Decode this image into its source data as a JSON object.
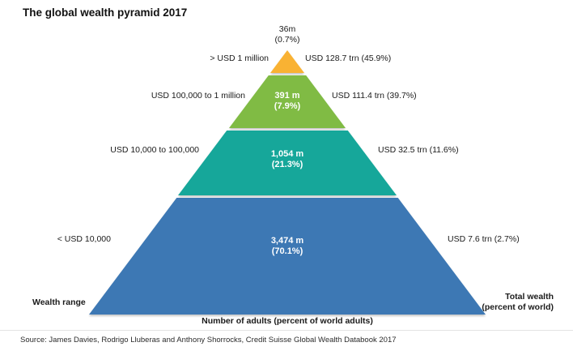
{
  "title": "The global wealth pyramid 2017",
  "footer": {
    "source": "Source: James Davies, Rodrigo Lluberas and Anthony Shorrocks, Credit Suisse Global Wealth Databook 2017"
  },
  "axes": {
    "wealth_range_label": "Wealth range",
    "adults_axis_label": "Number of adults (percent of world adults)",
    "total_wealth_label_line1": "Total wealth",
    "total_wealth_label_line2": "(percent of world)"
  },
  "chart_data": {
    "type": "pyramid",
    "title": "The global wealth pyramid 2017",
    "legend_position": "none",
    "segments": [
      {
        "level": "top",
        "wealth_range": "> USD 1 million",
        "adults_label": "36m",
        "adults_pct_label": "(0.7%)",
        "adults_m": 36,
        "adults_pct": 0.7,
        "total_wealth_label": "USD 128.7 trn (45.9%)",
        "total_wealth_trn_usd": 128.7,
        "total_wealth_pct": 45.9,
        "color": "#F9B233"
      },
      {
        "level": "upper-middle",
        "wealth_range": "USD 100,000 to 1 million",
        "adults_label": "391 m",
        "adults_pct_label": "(7.9%)",
        "adults_m": 391,
        "adults_pct": 7.9,
        "total_wealth_label": "USD 111.4 trn (39.7%)",
        "total_wealth_trn_usd": 111.4,
        "total_wealth_pct": 39.7,
        "color": "#80BB44"
      },
      {
        "level": "lower-middle",
        "wealth_range": "USD 10,000 to 100,000",
        "adults_label": "1,054 m",
        "adults_pct_label": "(21.3%)",
        "adults_m": 1054,
        "adults_pct": 21.3,
        "total_wealth_label": "USD 32.5 trn (11.6%)",
        "total_wealth_trn_usd": 32.5,
        "total_wealth_pct": 11.6,
        "color": "#16A79A"
      },
      {
        "level": "base",
        "wealth_range": "< USD 10,000",
        "adults_label": "3,474 m",
        "adults_pct_label": "(70.1%)",
        "adults_m": 3474,
        "adults_pct": 70.1,
        "total_wealth_label": "USD 7.6 trn (2.7%)",
        "total_wealth_trn_usd": 7.6,
        "total_wealth_pct": 2.7,
        "color": "#3D78B4"
      }
    ]
  }
}
